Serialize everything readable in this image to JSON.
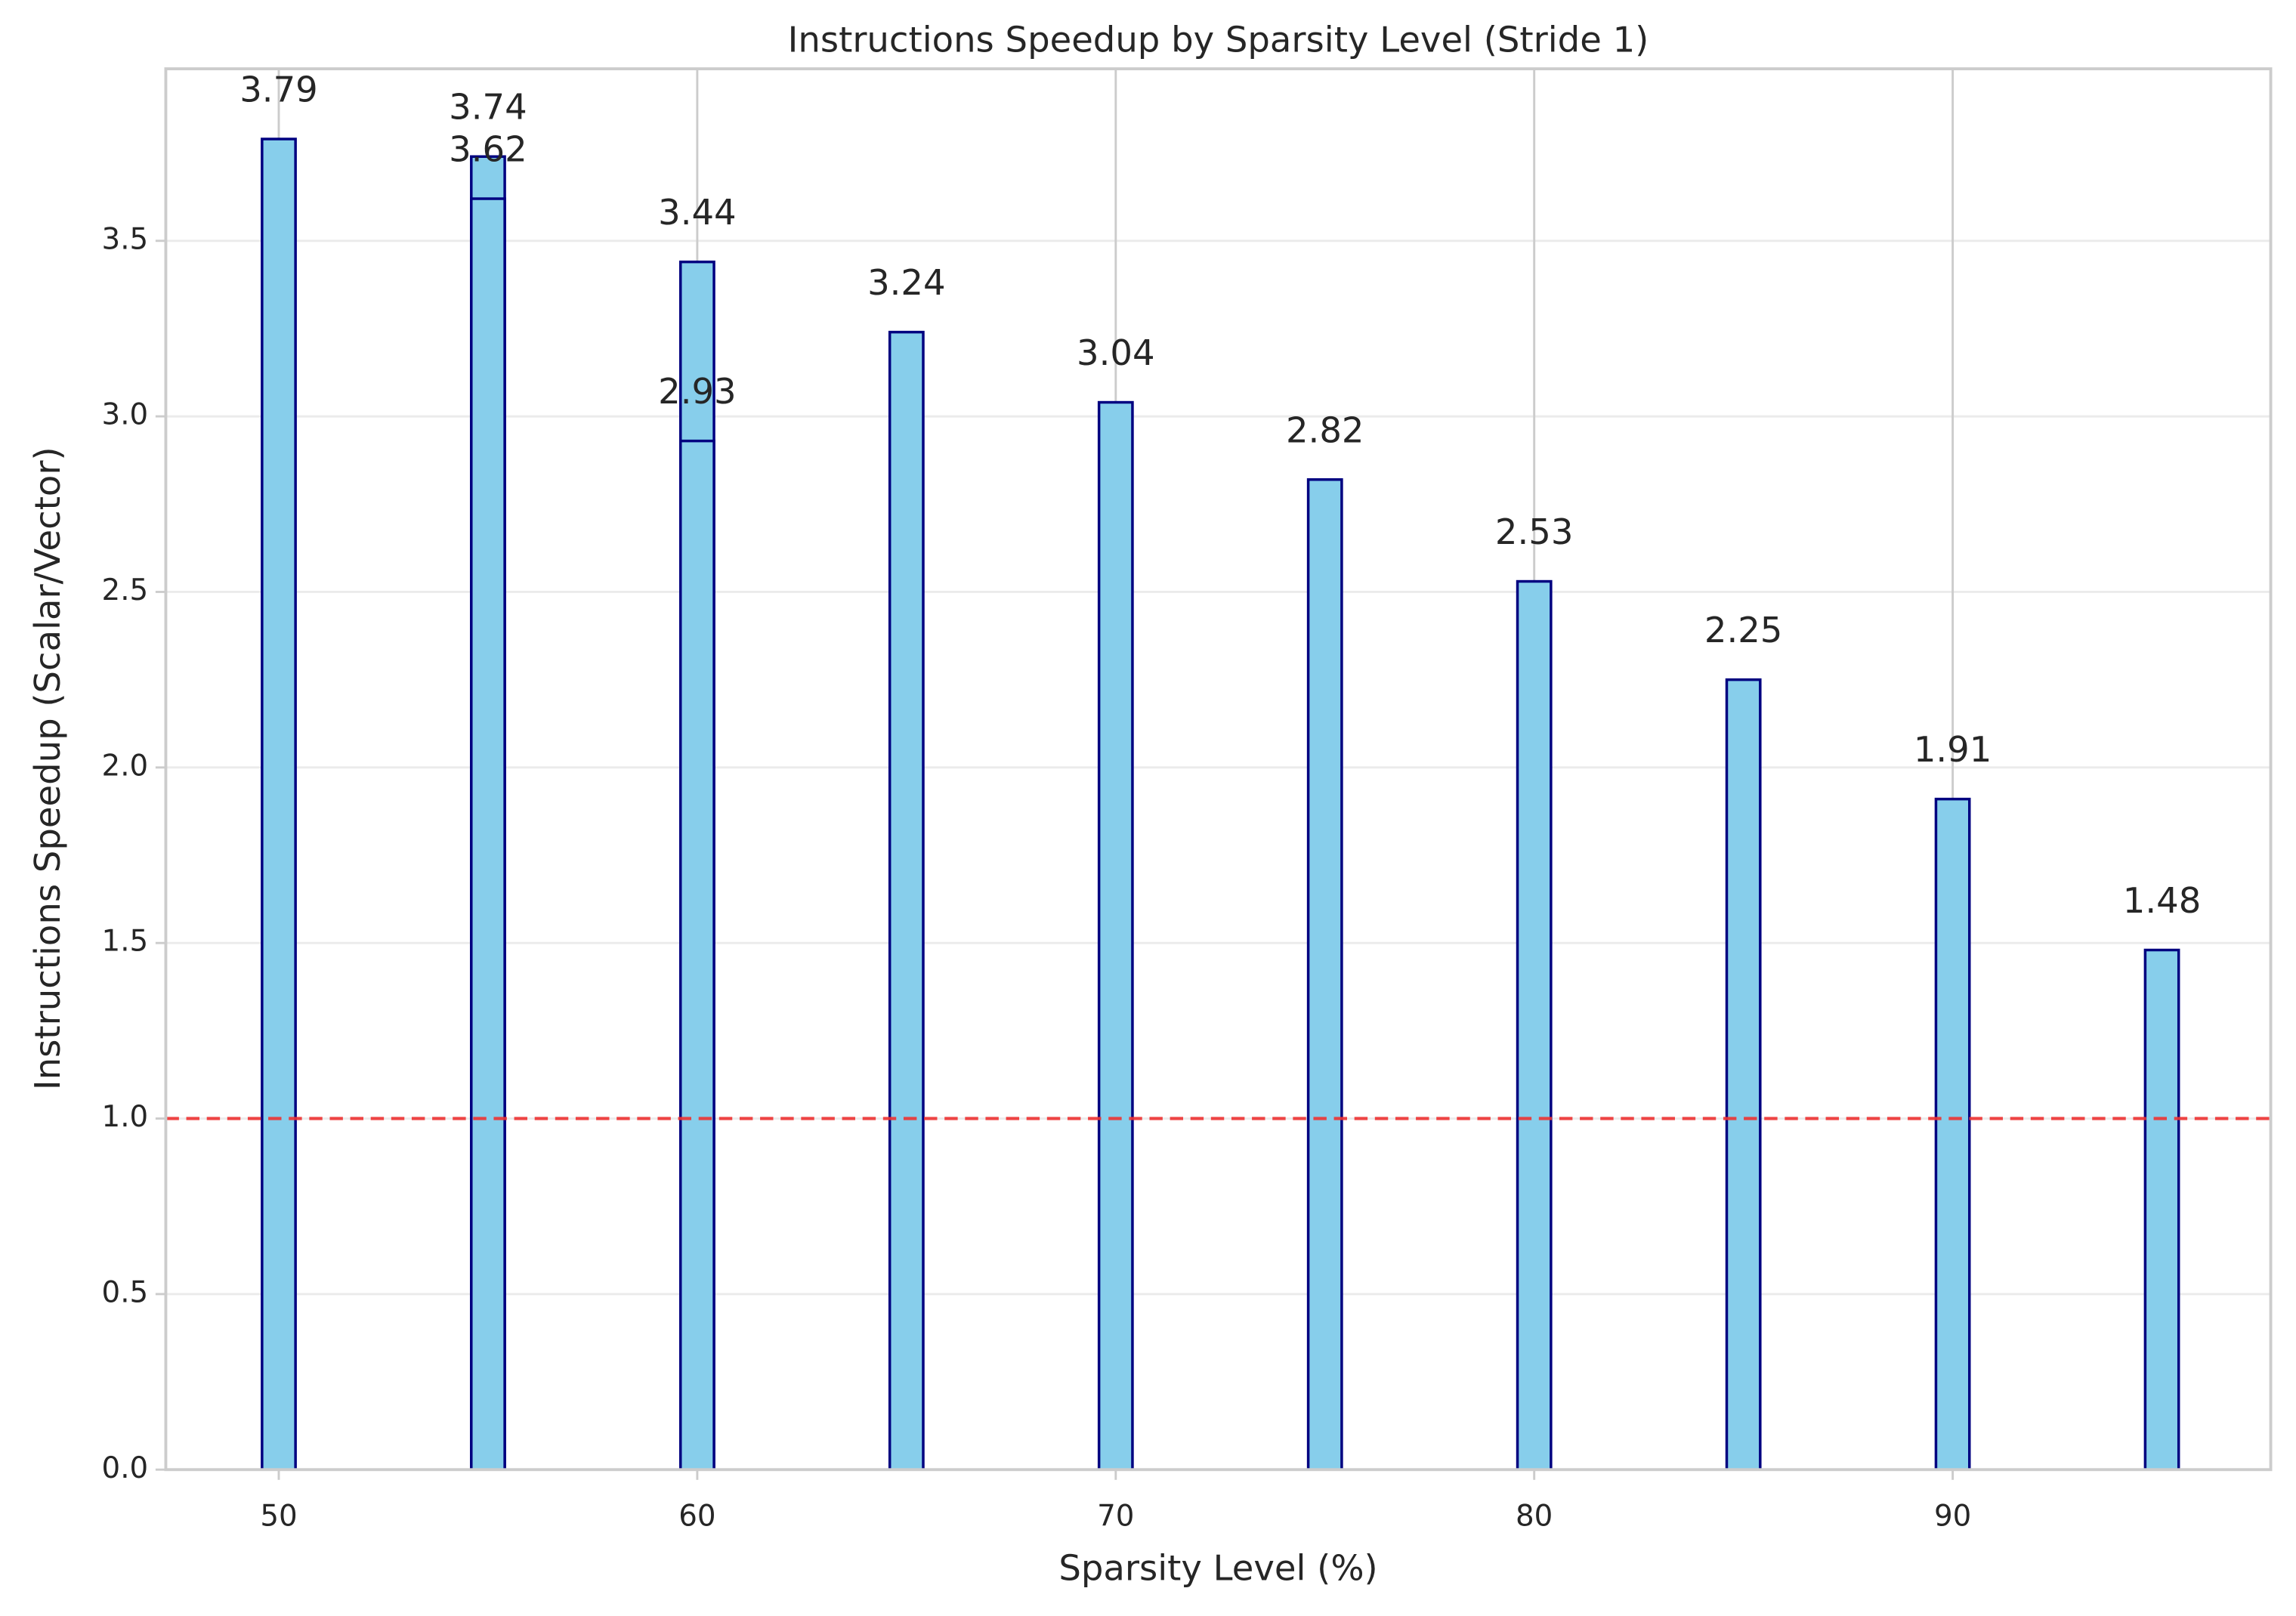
{
  "chart_data": {
    "type": "bar",
    "title": "Instructions Speedup by Sparsity Level (Stride 1)",
    "x_label": "Sparsity Level (%)",
    "y_label": "Instructions Speedup (Scalar/Vector)",
    "x": [
      50,
      55,
      55,
      60,
      60,
      65,
      70,
      75,
      80,
      85,
      90,
      95
    ],
    "values": [
      3.79,
      3.74,
      3.62,
      3.44,
      2.93,
      3.24,
      3.04,
      2.82,
      2.53,
      2.25,
      1.91,
      1.48
    ],
    "bar_width": 0.8,
    "color": "#87ceeb",
    "edge_color": "#000080",
    "reference_line": {
      "value": 1.0,
      "color": "#ee3333"
    },
    "xlim": [
      47.3,
      97.6
    ],
    "xticks": [
      50,
      60,
      70,
      80,
      90
    ],
    "ylim": [
      0,
      3.99
    ],
    "yticks": [
      {
        "value": 0,
        "label": "0.0"
      },
      {
        "value": 0.5,
        "label": "0.5"
      },
      {
        "value": 1,
        "label": "1.0"
      },
      {
        "value": 1.5,
        "label": "1.5"
      },
      {
        "value": 2,
        "label": "2.0"
      },
      {
        "value": 2.5,
        "label": "2.5"
      },
      {
        "value": 3,
        "label": "3.0"
      },
      {
        "value": 3.5,
        "label": "3.5"
      }
    ],
    "grid": true
  }
}
